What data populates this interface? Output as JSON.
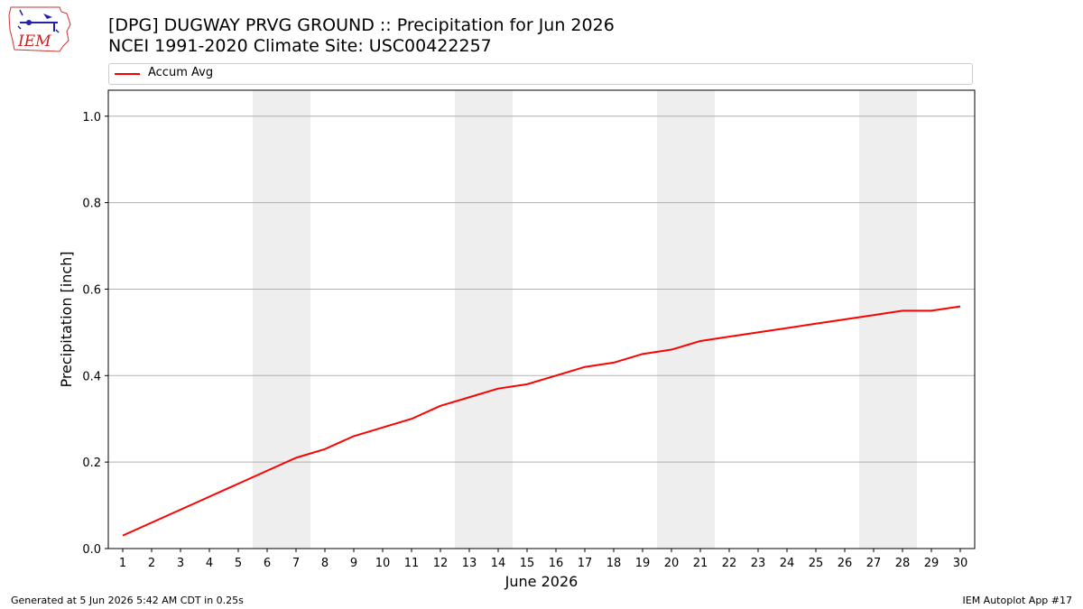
{
  "header": {
    "logo_text": "IEM",
    "title_line1": "[DPG] DUGWAY PRVG GROUND :: Precipitation for Jun 2026",
    "title_line2": "NCEI 1991-2020 Climate Site: USC00422257"
  },
  "footer": {
    "generated": "Generated at 5 Jun 2026 5:42 AM CDT in 0.25s",
    "app": "IEM Autoplot App #17"
  },
  "colors": {
    "series": "#ff0000",
    "weekend_band": "#eeeeee",
    "grid": "#b0b0b0"
  },
  "chart_data": {
    "type": "line",
    "xlabel": "June 2026",
    "ylabel": "Precipitation [inch]",
    "x": [
      1,
      2,
      3,
      4,
      5,
      6,
      7,
      8,
      9,
      10,
      11,
      12,
      13,
      14,
      15,
      16,
      17,
      18,
      19,
      20,
      21,
      22,
      23,
      24,
      25,
      26,
      27,
      28,
      29,
      30
    ],
    "xlim": [
      0.5,
      30.5
    ],
    "ylim": [
      0,
      1.06
    ],
    "yticks": [
      "0.0",
      "0.2",
      "0.4",
      "0.6",
      "0.8",
      "1.0"
    ],
    "grid": "horizontal",
    "legend_position": "top",
    "shaded_days": [
      [
        6,
        7
      ],
      [
        13,
        14
      ],
      [
        20,
        21
      ],
      [
        27,
        28
      ]
    ],
    "series": [
      {
        "name": "Accum Avg",
        "color": "#ff0000",
        "values": [
          0.03,
          0.06,
          0.09,
          0.12,
          0.15,
          0.18,
          0.21,
          0.23,
          0.26,
          0.28,
          0.3,
          0.33,
          0.35,
          0.37,
          0.38,
          0.4,
          0.42,
          0.43,
          0.45,
          0.46,
          0.48,
          0.49,
          0.5,
          0.51,
          0.52,
          0.53,
          0.54,
          0.55,
          0.55,
          0.56
        ]
      }
    ]
  }
}
